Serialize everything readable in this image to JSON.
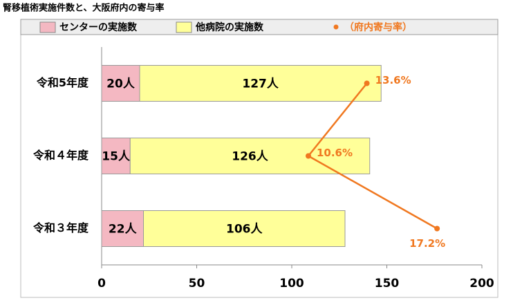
{
  "chart_data": {
    "type": "stacked-bar-line",
    "title": "腎移植術実施件数と、大阪府内の寄与率",
    "categories": [
      "令和5年度",
      "令和４年度",
      "令和３年度"
    ],
    "series": [
      {
        "name": "センターの実施数",
        "color": "#f4b8c2",
        "values": [
          20,
          15,
          22
        ],
        "value_labels": [
          "20人",
          "15人",
          "22人"
        ]
      },
      {
        "name": "他病院の実施数",
        "color": "#ffff99",
        "values": [
          127,
          126,
          106
        ],
        "value_labels": [
          "127人",
          "126人",
          "106人"
        ]
      },
      {
        "name": "（府内寄与率）",
        "color": "#f07820",
        "axis": "x2",
        "values": [
          13.6,
          10.6,
          17.2
        ],
        "value_labels": [
          "13.6%",
          "10.6%",
          "17.2%"
        ]
      }
    ],
    "xlim": [
      0,
      200
    ],
    "xticks": [
      0,
      50,
      100,
      150,
      200
    ],
    "x2lim": [
      0,
      19.5
    ]
  }
}
